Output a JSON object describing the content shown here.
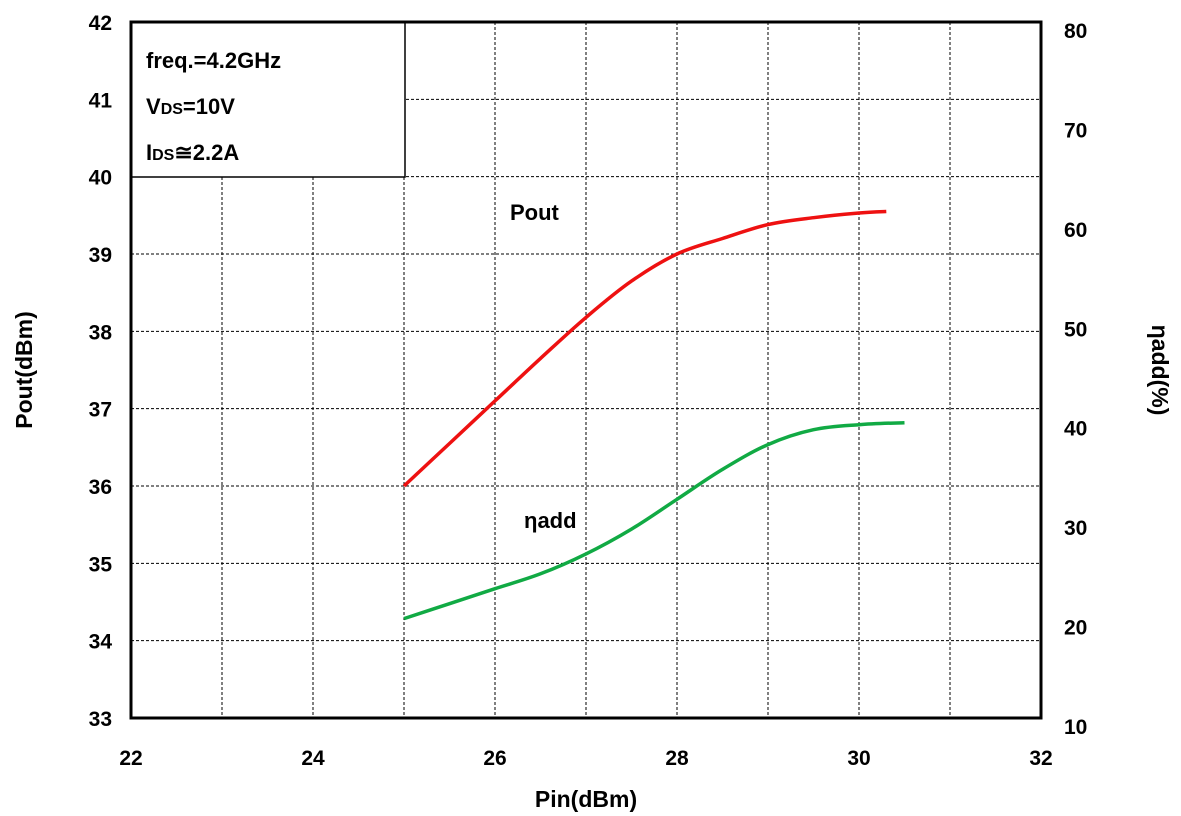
{
  "chart_data": {
    "type": "line",
    "xlabel": "Pin(dBm)",
    "ylabel": "Pout(dBm)",
    "y2label": "ηadd(%)",
    "xlim": [
      22,
      32
    ],
    "ylim": [
      33,
      42
    ],
    "y2lim": [
      10,
      80
    ],
    "x_ticks": [
      "22",
      "24",
      "26",
      "28",
      "30",
      "32"
    ],
    "y_ticks": [
      "33",
      "34",
      "35",
      "36",
      "37",
      "38",
      "39",
      "40",
      "41",
      "42"
    ],
    "y2_ticks": [
      "10",
      "20",
      "30",
      "40",
      "50",
      "60",
      "70",
      "80"
    ],
    "grid": true,
    "conditions": {
      "freq": "freq.=4.2GHz",
      "vds_main": "V",
      "vds_sub": "DS",
      "vds_value": "=10V",
      "ids_main": "I",
      "ids_sub": "DS",
      "ids_value": "≅2.2A"
    },
    "series": [
      {
        "name": "Pout",
        "axis": "left",
        "color": "#ee1111",
        "x": [
          25.0,
          25.5,
          26.0,
          26.5,
          27.0,
          27.5,
          28.0,
          28.5,
          29.0,
          29.5,
          30.0,
          30.3
        ],
        "y": [
          36.0,
          36.55,
          37.1,
          37.65,
          38.18,
          38.65,
          39.0,
          39.2,
          39.38,
          39.47,
          39.53,
          39.55
        ]
      },
      {
        "name": "ηadd",
        "axis": "right",
        "color": "#11aa44",
        "x": [
          25.0,
          25.5,
          26.0,
          26.5,
          27.0,
          27.5,
          28.0,
          28.5,
          29.0,
          29.5,
          30.0,
          30.5
        ],
        "y": [
          20.0,
          21.5,
          23.0,
          24.5,
          26.5,
          29.0,
          32.0,
          35.0,
          37.5,
          39.0,
          39.5,
          39.7
        ]
      }
    ]
  }
}
